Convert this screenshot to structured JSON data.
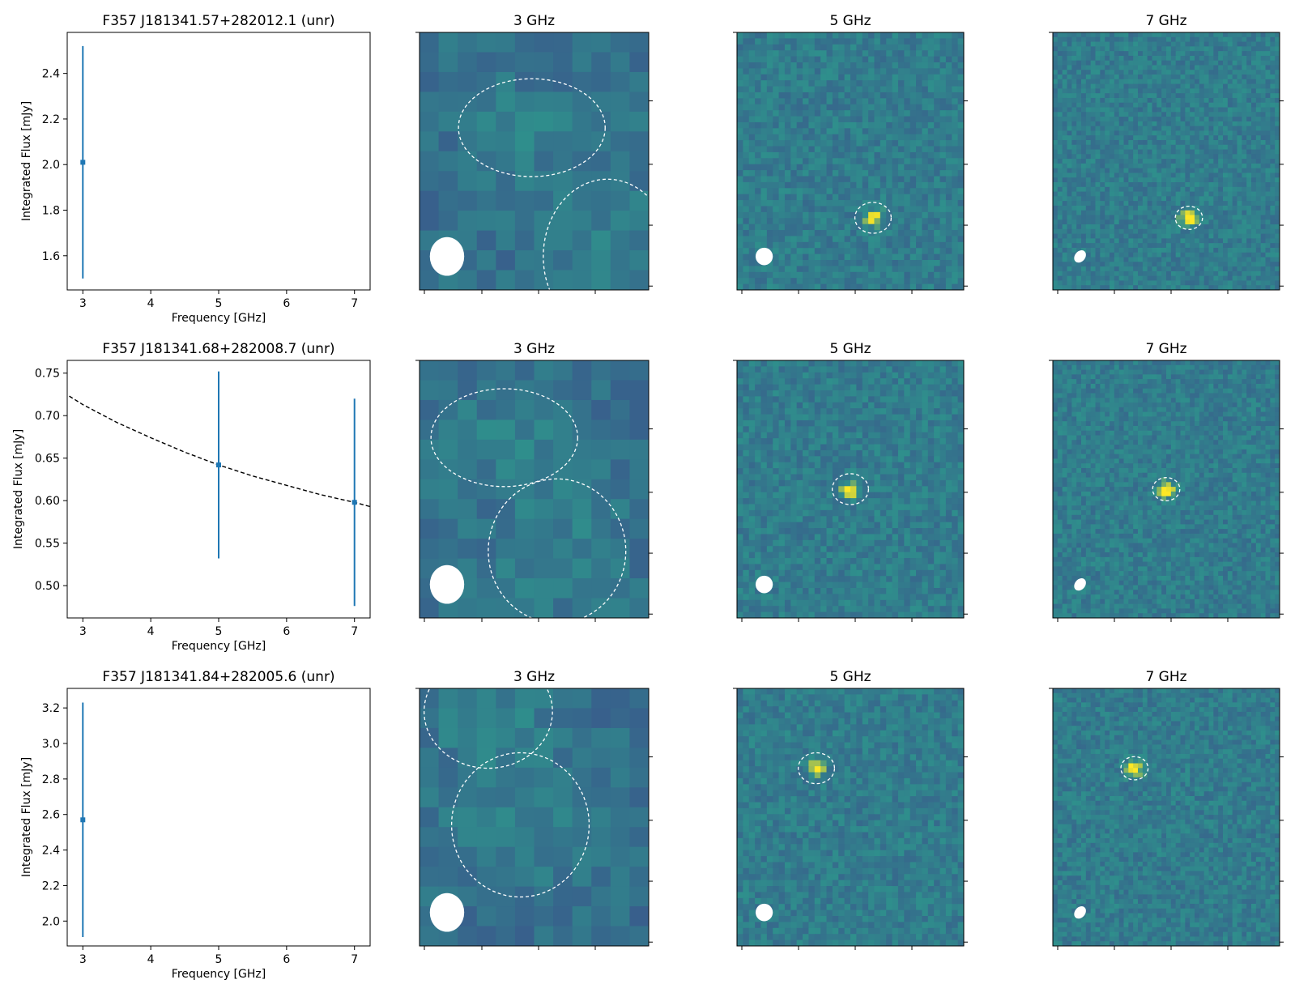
{
  "figure": {
    "rows": [
      {
        "title": "F357 J181341.57+282012.1 (unr)",
        "panel_titles": [
          "3 GHz",
          "5 GHz",
          "7 GHz"
        ]
      },
      {
        "title": "F357 J181341.68+282008.7 (unr)",
        "panel_titles": [
          "3 GHz",
          "5 GHz",
          "7 GHz"
        ]
      },
      {
        "title": "F357 J181341.84+282005.6 (unr)",
        "panel_titles": [
          "3 GHz",
          "5 GHz",
          "7 GHz"
        ]
      }
    ]
  },
  "colors": {
    "errorbar": "#1f77b4",
    "fit_line": "#000000",
    "image_low": "#3b4f8c",
    "image_mid": "#2f8f8c",
    "image_high": "#fde725",
    "contour": "#ffffff"
  },
  "chart_data": [
    {
      "type": "scatter",
      "title": "F357 J181341.57+282012.1 (unr)",
      "xlabel": "Frequency [GHz]",
      "ylabel": "Integrated Flux [mJy]",
      "xlim": [
        2.77,
        7.23
      ],
      "ylim": [
        1.45,
        2.58
      ],
      "xticks": [
        3,
        4,
        5,
        6,
        7
      ],
      "yticks": [
        1.6,
        1.8,
        2.0,
        2.2,
        2.4
      ],
      "ytick_labels": [
        "1.6",
        "1.8",
        "2.0",
        "2.2",
        "2.4"
      ],
      "series": [
        {
          "x": [
            3
          ],
          "y": [
            2.01
          ],
          "yerr_low": [
            1.5
          ],
          "yerr_high": [
            2.52
          ]
        }
      ],
      "fit": null
    },
    {
      "type": "scatter",
      "title": "F357 J181341.68+282008.7 (unr)",
      "xlabel": "Frequency [GHz]",
      "ylabel": "Integrated Flux [mJy]",
      "xlim": [
        2.77,
        7.23
      ],
      "ylim": [
        0.462,
        0.765
      ],
      "xticks": [
        3,
        4,
        5,
        6,
        7
      ],
      "yticks": [
        0.5,
        0.55,
        0.6,
        0.65,
        0.7,
        0.75
      ],
      "ytick_labels": [
        "0.50",
        "0.55",
        "0.60",
        "0.65",
        "0.70",
        "0.75"
      ],
      "series": [
        {
          "x": [
            5,
            7
          ],
          "y": [
            0.642,
            0.598
          ],
          "yerr_low": [
            0.532,
            0.476
          ],
          "yerr_high": [
            0.752,
            0.72
          ]
        }
      ],
      "fit": {
        "style": "dashed",
        "x": [
          2.8,
          3.0,
          3.5,
          4.0,
          4.5,
          5.0,
          5.5,
          6.0,
          6.5,
          7.0,
          7.23
        ],
        "y": [
          0.723,
          0.713,
          0.692,
          0.674,
          0.657,
          0.642,
          0.629,
          0.618,
          0.607,
          0.598,
          0.593
        ]
      }
    },
    {
      "type": "scatter",
      "title": "F357 J181341.84+282005.6 (unr)",
      "xlabel": "Frequency [GHz]",
      "ylabel": "Integrated Flux [mJy]",
      "xlim": [
        2.77,
        7.23
      ],
      "ylim": [
        1.86,
        3.31
      ],
      "xticks": [
        3,
        4,
        5,
        6,
        7
      ],
      "yticks": [
        2.0,
        2.2,
        2.4,
        2.6,
        2.8,
        3.0,
        3.2
      ],
      "ytick_labels": [
        "2.0",
        "2.2",
        "2.4",
        "2.6",
        "2.8",
        "3.0",
        "3.2"
      ],
      "series": [
        {
          "x": [
            3
          ],
          "y": [
            2.57
          ],
          "yerr_low": [
            1.91
          ],
          "yerr_high": [
            3.23
          ]
        }
      ],
      "fit": null
    }
  ]
}
